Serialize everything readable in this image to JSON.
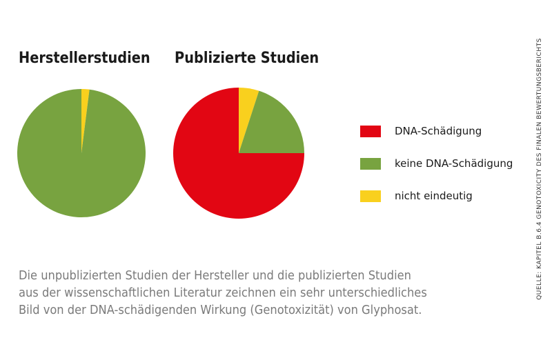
{
  "chart_data": [
    {
      "type": "pie",
      "title": "Herstellerstudien",
      "slices": [
        {
          "label": "nicht eindeutig",
          "value": 2,
          "color": "#f9d01e"
        },
        {
          "label": "keine DNA-Schädigung",
          "value": 98,
          "color": "#78a340"
        }
      ]
    },
    {
      "type": "pie",
      "title": "Publizierte Studien",
      "slices": [
        {
          "label": "nicht eindeutig",
          "value": 5,
          "color": "#f9d01e"
        },
        {
          "label": "keine DNA-Schädigung",
          "value": 20,
          "color": "#78a340"
        },
        {
          "label": "DNA-Schädigung",
          "value": 75,
          "color": "#e20613"
        }
      ]
    }
  ],
  "legend": [
    {
      "label": "DNA-Schädigung",
      "color": "#e20613"
    },
    {
      "label": "keine DNA-Schädigung",
      "color": "#78a340"
    },
    {
      "label": "nicht eindeutig",
      "color": "#f9d01e"
    }
  ],
  "caption": [
    "Die unpublizierten Studien der Hersteller und die publizierten Studien",
    "aus der wissenschaftlichen Literatur zeichnen ein sehr unterschiedliches",
    "Bild von der DNA-schädigenden Wirkung (Genotoxizität) von Glyphosat."
  ],
  "source": "QUELLE: KAPITEL B.6.4 GENOTOXICITY DES FINALEN BEWERTUNGSBERICHTS"
}
